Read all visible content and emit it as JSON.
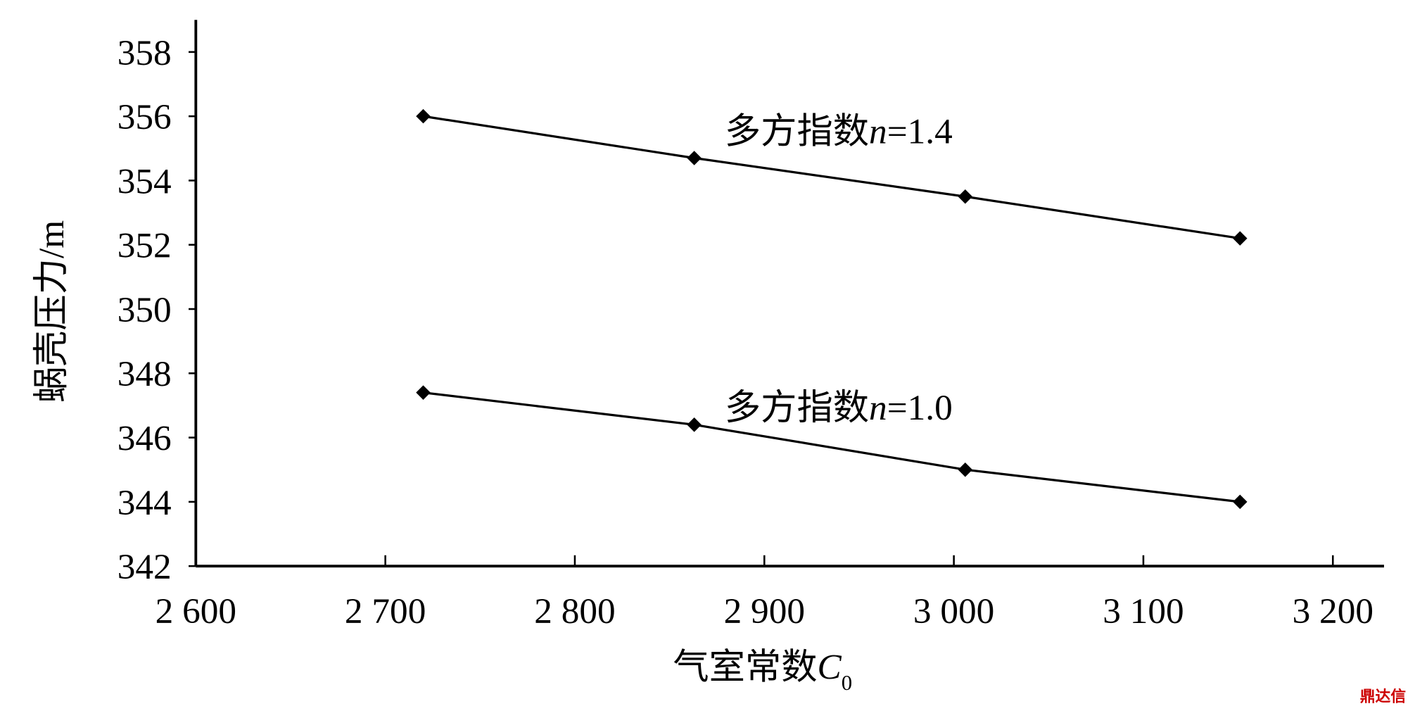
{
  "chart_data": {
    "type": "line",
    "y_label": "蜗壳压力/m",
    "x_label": {
      "text": "气室常数",
      "symbol": "C",
      "subscript": "0"
    },
    "xlim": [
      2600,
      3227
    ],
    "ylim": [
      342,
      359
    ],
    "xticks": [
      {
        "value": 2600,
        "label": "2 600"
      },
      {
        "value": 2700,
        "label": "2 700"
      },
      {
        "value": 2800,
        "label": "2 800"
      },
      {
        "value": 2900,
        "label": "2 900"
      },
      {
        "value": 3000,
        "label": "3 000"
      },
      {
        "value": 3100,
        "label": "3 100"
      },
      {
        "value": 3200,
        "label": "3 200"
      }
    ],
    "yticks": [
      342,
      344,
      346,
      348,
      350,
      352,
      354,
      356,
      358
    ],
    "series": [
      {
        "label": {
          "text": "多方指数",
          "symbol": "n",
          "suffix": "=1.4"
        },
        "color": "#000000",
        "x": [
          2720,
          2863,
          3006,
          3151
        ],
        "values": [
          356.0,
          354.7,
          353.5,
          352.2
        ]
      },
      {
        "label": {
          "text": "多方指数",
          "symbol": "n",
          "suffix": "=1.0"
        },
        "color": "#000000",
        "x": [
          2720,
          2863,
          3006,
          3151
        ],
        "values": [
          347.4,
          346.4,
          345.0,
          344.0
        ]
      }
    ],
    "watermark": "鼎达信"
  }
}
